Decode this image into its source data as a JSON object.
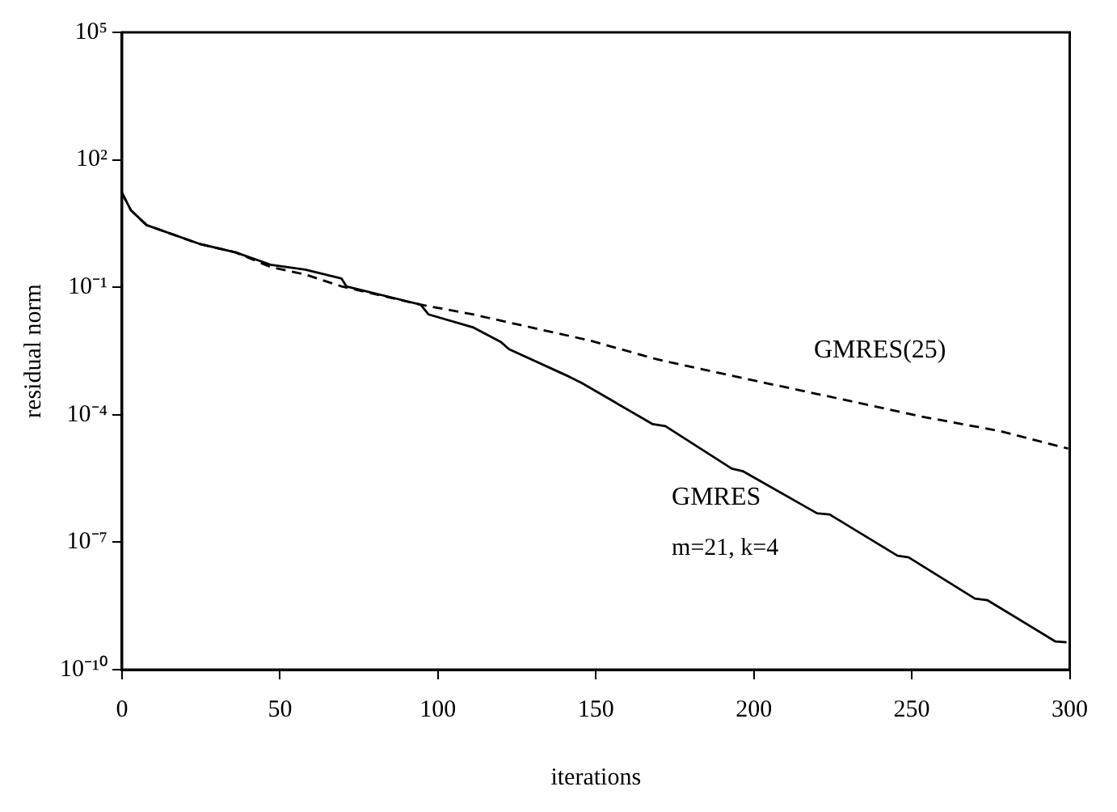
{
  "chart_data": {
    "type": "line",
    "xlabel": "iterations",
    "ylabel": "residual norm",
    "log": "y",
    "grid": false,
    "legend": false,
    "marker": "none",
    "xlim": [
      0,
      300
    ],
    "xticks": [
      0,
      50,
      100,
      150,
      200,
      250,
      300
    ],
    "ylim": [
      1e-10,
      100000.0
    ],
    "yticks": [
      {
        "value": 1e-10,
        "label": "10⁻¹⁰"
      },
      {
        "value": 1e-07,
        "label": "10⁻⁷"
      },
      {
        "value": 0.0001,
        "label": "10⁻⁴"
      },
      {
        "value": 0.1,
        "label": "10⁻¹"
      },
      {
        "value": 100,
        "label": "10²"
      },
      {
        "value": 100000,
        "label": "10⁵"
      }
    ],
    "annotations": [
      "m=21, k=4"
    ],
    "series": [
      {
        "name": "GMRES",
        "color": "#000000",
        "line_style": "solid",
        "x": [
          0,
          2.8,
          7.8,
          24.5,
          36,
          47,
          58,
          69.5,
          71,
          94.5,
          97,
          111,
          120,
          122.5,
          141.5,
          145.5,
          168,
          172,
          193,
          196.5,
          220,
          224,
          245.5,
          249,
          270,
          274,
          295.5,
          299
        ],
        "values": [
          16.6,
          6.5,
          2.9,
          1.05,
          0.66,
          0.34,
          0.26,
          0.16,
          0.105,
          0.039,
          0.023,
          0.0115,
          0.0051,
          0.0035,
          0.00079,
          0.00056,
          6e-05,
          5.4e-05,
          5.4e-06,
          4.7e-06,
          4.8e-07,
          4.5e-07,
          4.8e-08,
          4.4e-08,
          4.7e-09,
          4.3e-09,
          4.6e-10,
          4.4e-10
        ]
      },
      {
        "name": "GMRES(25)",
        "color": "#000000",
        "line_style": "dashed",
        "x": [
          0,
          2.8,
          7.8,
          24.5,
          36,
          47,
          58,
          69.5,
          94.5,
          111,
          148,
          169.5,
          198,
          228,
          253,
          278,
          299.5
        ],
        "values": [
          16.6,
          6.5,
          2.9,
          1.05,
          0.66,
          0.3,
          0.2,
          0.105,
          0.039,
          0.023,
          0.0056,
          0.002,
          0.00069,
          0.00023,
          9.1e-05,
          4.1e-05,
          1.6e-05
        ]
      }
    ]
  }
}
